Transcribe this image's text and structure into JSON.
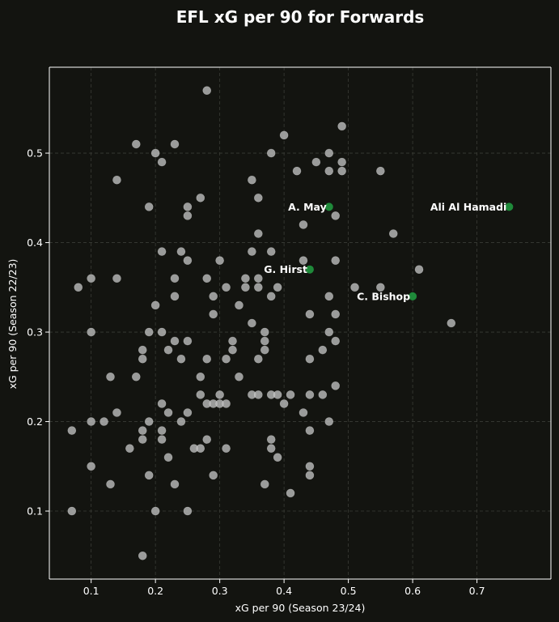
{
  "chart_data": {
    "type": "scatter",
    "title": "EFL xG per 90 for Forwards",
    "xlabel": "xG per 90 (Season 23/24)",
    "ylabel": "xG per 90 (Season 22/23)",
    "xlim": [
      0.035,
      0.815
    ],
    "ylim": [
      0.024,
      0.596
    ],
    "xticks": [
      "0.1",
      "0.2",
      "0.3",
      "0.4",
      "0.5",
      "0.6",
      "0.7"
    ],
    "yticks": [
      "0.1",
      "0.2",
      "0.3",
      "0.4",
      "0.5"
    ],
    "grid": true,
    "colors": {
      "background": "#131410",
      "point": "#bdbdbd",
      "highlight": "#1f8a3a",
      "grid": "#3a3c36"
    },
    "points": [
      [
        0.28,
        0.57
      ],
      [
        0.49,
        0.53
      ],
      [
        0.4,
        0.52
      ],
      [
        0.17,
        0.51
      ],
      [
        0.23,
        0.51
      ],
      [
        0.2,
        0.5
      ],
      [
        0.38,
        0.5
      ],
      [
        0.47,
        0.5
      ],
      [
        0.21,
        0.49
      ],
      [
        0.45,
        0.49
      ],
      [
        0.49,
        0.49
      ],
      [
        0.42,
        0.48
      ],
      [
        0.47,
        0.48
      ],
      [
        0.49,
        0.48
      ],
      [
        0.55,
        0.48
      ],
      [
        0.14,
        0.47
      ],
      [
        0.35,
        0.47
      ],
      [
        0.27,
        0.45
      ],
      [
        0.36,
        0.45
      ],
      [
        0.19,
        0.44
      ],
      [
        0.25,
        0.44
      ],
      [
        0.25,
        0.43
      ],
      [
        0.48,
        0.43
      ],
      [
        0.43,
        0.42
      ],
      [
        0.36,
        0.41
      ],
      [
        0.57,
        0.41
      ],
      [
        0.21,
        0.39
      ],
      [
        0.24,
        0.39
      ],
      [
        0.35,
        0.39
      ],
      [
        0.38,
        0.39
      ],
      [
        0.25,
        0.38
      ],
      [
        0.3,
        0.38
      ],
      [
        0.43,
        0.38
      ],
      [
        0.48,
        0.38
      ],
      [
        0.61,
        0.37
      ],
      [
        0.1,
        0.36
      ],
      [
        0.14,
        0.36
      ],
      [
        0.23,
        0.36
      ],
      [
        0.28,
        0.36
      ],
      [
        0.34,
        0.36
      ],
      [
        0.36,
        0.36
      ],
      [
        0.08,
        0.35
      ],
      [
        0.31,
        0.35
      ],
      [
        0.34,
        0.35
      ],
      [
        0.36,
        0.35
      ],
      [
        0.39,
        0.35
      ],
      [
        0.51,
        0.35
      ],
      [
        0.55,
        0.35
      ],
      [
        0.23,
        0.34
      ],
      [
        0.29,
        0.34
      ],
      [
        0.38,
        0.34
      ],
      [
        0.47,
        0.34
      ],
      [
        0.2,
        0.33
      ],
      [
        0.33,
        0.33
      ],
      [
        0.29,
        0.32
      ],
      [
        0.44,
        0.32
      ],
      [
        0.48,
        0.32
      ],
      [
        0.35,
        0.31
      ],
      [
        0.66,
        0.31
      ],
      [
        0.1,
        0.3
      ],
      [
        0.19,
        0.3
      ],
      [
        0.21,
        0.3
      ],
      [
        0.37,
        0.3
      ],
      [
        0.47,
        0.3
      ],
      [
        0.23,
        0.29
      ],
      [
        0.25,
        0.29
      ],
      [
        0.32,
        0.29
      ],
      [
        0.37,
        0.29
      ],
      [
        0.48,
        0.29
      ],
      [
        0.18,
        0.28
      ],
      [
        0.22,
        0.28
      ],
      [
        0.32,
        0.28
      ],
      [
        0.37,
        0.28
      ],
      [
        0.46,
        0.28
      ],
      [
        0.18,
        0.27
      ],
      [
        0.24,
        0.27
      ],
      [
        0.28,
        0.27
      ],
      [
        0.31,
        0.27
      ],
      [
        0.36,
        0.27
      ],
      [
        0.44,
        0.27
      ],
      [
        0.13,
        0.25
      ],
      [
        0.17,
        0.25
      ],
      [
        0.27,
        0.25
      ],
      [
        0.33,
        0.25
      ],
      [
        0.48,
        0.24
      ],
      [
        0.27,
        0.23
      ],
      [
        0.3,
        0.23
      ],
      [
        0.35,
        0.23
      ],
      [
        0.36,
        0.23
      ],
      [
        0.38,
        0.23
      ],
      [
        0.39,
        0.23
      ],
      [
        0.41,
        0.23
      ],
      [
        0.44,
        0.23
      ],
      [
        0.46,
        0.23
      ],
      [
        0.21,
        0.22
      ],
      [
        0.28,
        0.22
      ],
      [
        0.29,
        0.22
      ],
      [
        0.3,
        0.22
      ],
      [
        0.31,
        0.22
      ],
      [
        0.4,
        0.22
      ],
      [
        0.14,
        0.21
      ],
      [
        0.22,
        0.21
      ],
      [
        0.25,
        0.21
      ],
      [
        0.43,
        0.21
      ],
      [
        0.1,
        0.2
      ],
      [
        0.12,
        0.2
      ],
      [
        0.19,
        0.2
      ],
      [
        0.24,
        0.2
      ],
      [
        0.47,
        0.2
      ],
      [
        0.07,
        0.19
      ],
      [
        0.18,
        0.19
      ],
      [
        0.21,
        0.19
      ],
      [
        0.44,
        0.19
      ],
      [
        0.18,
        0.18
      ],
      [
        0.21,
        0.18
      ],
      [
        0.28,
        0.18
      ],
      [
        0.38,
        0.18
      ],
      [
        0.16,
        0.17
      ],
      [
        0.26,
        0.17
      ],
      [
        0.27,
        0.17
      ],
      [
        0.31,
        0.17
      ],
      [
        0.38,
        0.17
      ],
      [
        0.22,
        0.16
      ],
      [
        0.39,
        0.16
      ],
      [
        0.1,
        0.15
      ],
      [
        0.44,
        0.15
      ],
      [
        0.19,
        0.14
      ],
      [
        0.29,
        0.14
      ],
      [
        0.44,
        0.14
      ],
      [
        0.13,
        0.13
      ],
      [
        0.23,
        0.13
      ],
      [
        0.37,
        0.13
      ],
      [
        0.41,
        0.12
      ],
      [
        0.07,
        0.1
      ],
      [
        0.2,
        0.1
      ],
      [
        0.25,
        0.1
      ],
      [
        0.18,
        0.05
      ]
    ],
    "highlighted": [
      {
        "name": "Ali Al Hamadi",
        "x": 0.75,
        "y": 0.44
      },
      {
        "name": "A. May",
        "x": 0.47,
        "y": 0.44
      },
      {
        "name": "G. Hirst",
        "x": 0.44,
        "y": 0.37
      },
      {
        "name": "C. Bishop",
        "x": 0.6,
        "y": 0.34
      }
    ]
  }
}
